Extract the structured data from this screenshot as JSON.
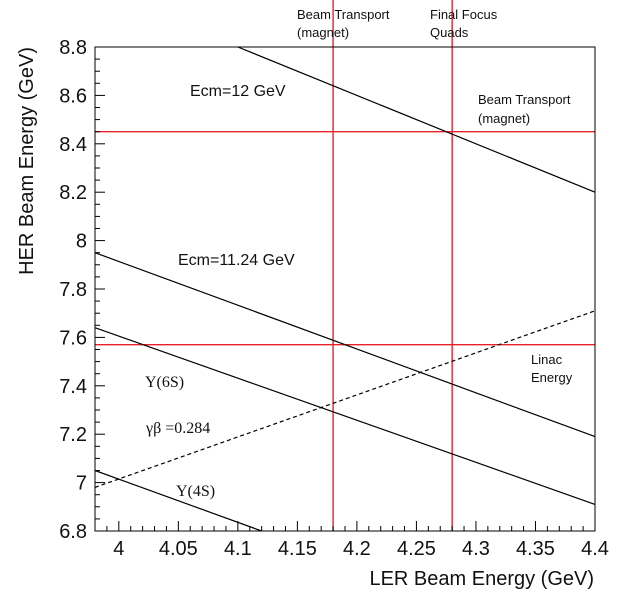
{
  "chart_data": {
    "type": "line",
    "xlabel": "LER Beam Energy (GeV)",
    "ylabel": "HER Beam Energy (GeV)",
    "xlim": [
      3.98,
      4.4
    ],
    "ylim": [
      6.8,
      8.8
    ],
    "x_ticks": [
      "4",
      "4.05",
      "4.1",
      "4.15",
      "4.2",
      "4.25",
      "4.3",
      "4.35",
      "4.4"
    ],
    "y_ticks": [
      "6.8",
      "7",
      "7.2",
      "7.4",
      "7.6",
      "7.8",
      "8",
      "8.2",
      "8.4",
      "8.6",
      "8.8"
    ],
    "grid": false,
    "series": [
      {
        "name": "Ecm=12 GeV",
        "style": "solid",
        "color": "#000000",
        "x": [
          4.1,
          4.4
        ],
        "y": [
          8.8,
          8.2
        ]
      },
      {
        "name": "Ecm=11.24 GeV",
        "style": "solid",
        "color": "#000000",
        "x": [
          3.98,
          4.4
        ],
        "y": [
          7.95,
          7.19
        ]
      },
      {
        "name": "Υ(6S)",
        "style": "solid",
        "color": "#000000",
        "x": [
          3.98,
          4.4
        ],
        "y": [
          7.64,
          6.91
        ]
      },
      {
        "name": "Υ(4S)",
        "style": "solid",
        "color": "#000000",
        "x": [
          3.98,
          4.12
        ],
        "y": [
          7.05,
          6.8
        ]
      },
      {
        "name": "γβ =0.284",
        "style": "dashed",
        "color": "#000000",
        "x": [
          3.98,
          4.4
        ],
        "y": [
          6.98,
          7.71
        ]
      }
    ],
    "reference_lines": [
      {
        "orientation": "vertical",
        "value": 4.18,
        "color": "#e8202a",
        "label_lines": [
          "Beam Transport",
          "(magnet)"
        ]
      },
      {
        "orientation": "vertical",
        "value": 4.28,
        "color": "#e8202a",
        "label_lines": [
          "Final Focus",
          "Quads"
        ]
      },
      {
        "orientation": "horizontal",
        "value": 8.45,
        "color": "#e8202a",
        "label_lines": [
          "Beam Transport",
          "(magnet)"
        ]
      },
      {
        "orientation": "horizontal",
        "value": 7.57,
        "color": "#e8202a",
        "label_lines": [
          "Linac",
          "Energy"
        ]
      }
    ],
    "annotations": [
      {
        "text": "Ecm=12 GeV",
        "x": 4.045,
        "y": 8.61
      },
      {
        "text": "Ecm=11.24 GeV",
        "x": 4.035,
        "y": 7.86
      },
      {
        "text": "Υ(6S)",
        "x": 4.02,
        "y": 7.42
      },
      {
        "text": "γβ =0.284",
        "x": 4.025,
        "y": 7.19
      },
      {
        "text": "Υ(4S)",
        "x": 4.048,
        "y": 6.95
      }
    ]
  }
}
